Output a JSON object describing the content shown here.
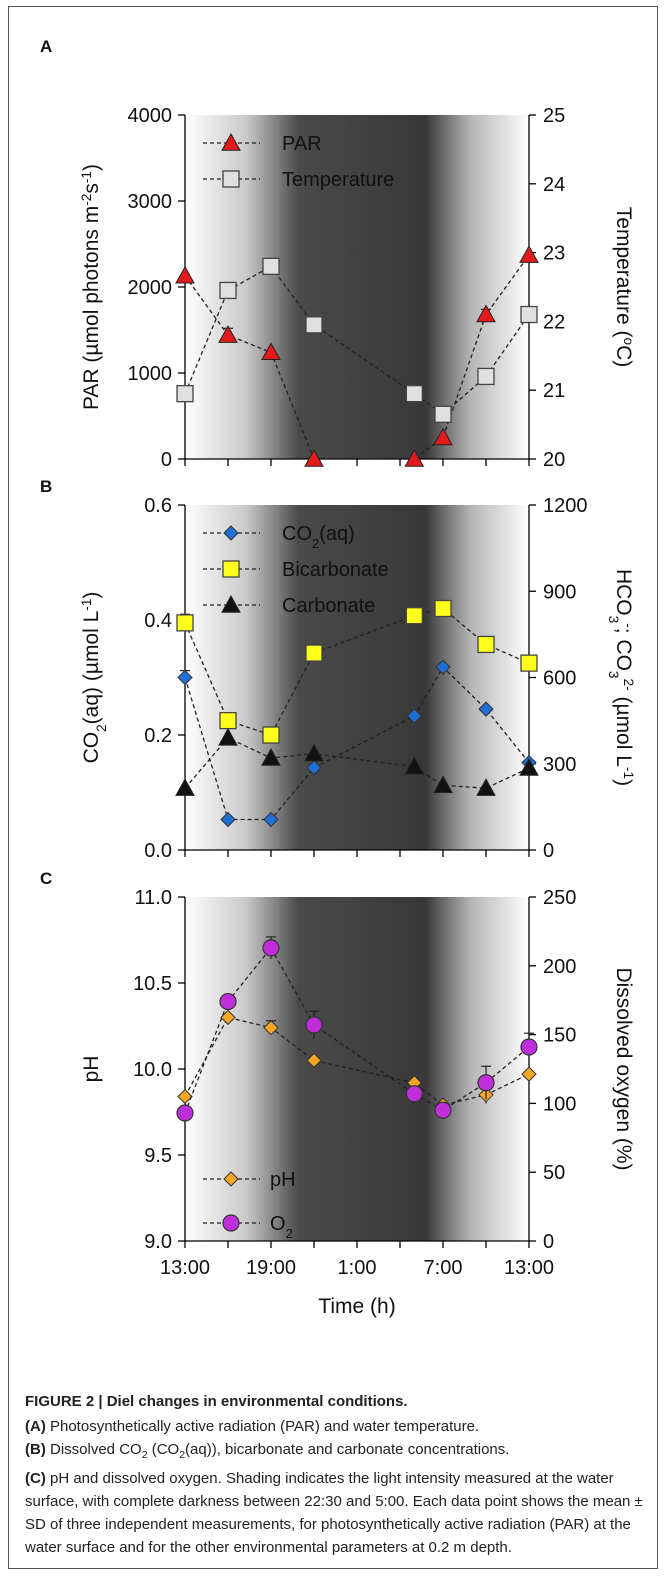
{
  "chart_data": [
    {
      "panel": "A",
      "type": "line",
      "x_ticks": [
        "13:00",
        "19:00",
        "1:00",
        "7:00",
        "13:00"
      ],
      "x_hours": [
        13,
        19,
        25,
        31,
        37
      ],
      "ylabel_left": "PAR (µmol photons m-2s-1)",
      "ylabel_right": "Temperature (°C)",
      "ylim_left": [
        0,
        4000
      ],
      "yticks_left": [
        0,
        1000,
        2000,
        3000,
        4000
      ],
      "ylim_right": [
        20,
        25
      ],
      "yticks_right": [
        20,
        21,
        22,
        23,
        24,
        25
      ],
      "series": [
        {
          "name": "PAR",
          "marker": "triangle",
          "color": "#e31a1c",
          "axis": "left",
          "x": [
            13,
            16,
            19,
            22,
            29,
            31,
            34,
            37
          ],
          "y": [
            2130,
            1440,
            1240,
            0,
            0,
            250,
            1680,
            2370
          ],
          "err": [
            0,
            80,
            0,
            0,
            0,
            0,
            60,
            0
          ]
        },
        {
          "name": "Temperature",
          "marker": "square",
          "color": "#e0e0e0",
          "axis": "right",
          "x": [
            13,
            16,
            19,
            22,
            29,
            31,
            34,
            37
          ],
          "y": [
            20.95,
            22.45,
            22.8,
            21.95,
            20.95,
            20.65,
            21.2,
            22.1
          ],
          "err": [
            0,
            0,
            0,
            0,
            0,
            0,
            0.08,
            0
          ]
        }
      ]
    },
    {
      "panel": "B",
      "type": "line",
      "x_ticks": [
        "13:00",
        "19:00",
        "1:00",
        "7:00",
        "13:00"
      ],
      "x_hours": [
        13,
        19,
        25,
        31,
        37
      ],
      "ylabel_left": "CO2(aq) (µmol L-1)",
      "ylabel_right": "HCO3-; CO32- (µmol L-1)",
      "ylim_left": [
        0,
        0.6
      ],
      "yticks_left": [
        0.0,
        0.2,
        0.4,
        0.6
      ],
      "ylim_right": [
        0,
        1200
      ],
      "yticks_right": [
        0,
        300,
        600,
        900,
        1200
      ],
      "series": [
        {
          "name": "CO2(aq)",
          "marker": "diamond",
          "color": "#1f6fd6",
          "axis": "left",
          "x": [
            13,
            16,
            19,
            22,
            29,
            31,
            34,
            37
          ],
          "y": [
            0.3,
            0.053,
            0.053,
            0.143,
            0.233,
            0.318,
            0.245,
            0.152
          ],
          "err": [
            0.012,
            0,
            0,
            0,
            0,
            0,
            0,
            0
          ]
        },
        {
          "name": "Bicarbonate",
          "marker": "square",
          "color": "#ffff1a",
          "axis": "right",
          "x": [
            13,
            16,
            19,
            22,
            29,
            31,
            34,
            37
          ],
          "y": [
            790,
            450,
            400,
            685,
            815,
            840,
            715,
            650
          ],
          "err": [
            30,
            0,
            0,
            15,
            0,
            0,
            0,
            20
          ]
        },
        {
          "name": "Carbonate",
          "marker": "triangle",
          "color": "#111111",
          "axis": "right",
          "x": [
            13,
            16,
            19,
            22,
            29,
            31,
            34,
            37
          ],
          "y": [
            215,
            390,
            320,
            335,
            290,
            225,
            215,
            285
          ],
          "err": [
            0,
            0,
            0,
            0,
            0,
            0,
            0,
            0
          ]
        }
      ]
    },
    {
      "panel": "C",
      "type": "line",
      "x_ticks": [
        "13:00",
        "19:00",
        "1:00",
        "7:00",
        "13:00"
      ],
      "x_hours": [
        13,
        19,
        25,
        31,
        37
      ],
      "xlabel": "Time (h)",
      "ylabel_left": "pH",
      "ylabel_right": "Dissolved oxygen (%)",
      "ylim_left": [
        9.0,
        11.0
      ],
      "yticks_left": [
        "9.0",
        "9.5",
        "10.0",
        "10.5",
        "11.0"
      ],
      "ylim_right": [
        0,
        250
      ],
      "yticks_right": [
        0,
        50,
        100,
        150,
        200,
        250
      ],
      "series": [
        {
          "name": "pH",
          "marker": "diamond",
          "color": "#f5a623",
          "axis": "left",
          "x": [
            13,
            16,
            19,
            22,
            29,
            31,
            34,
            37
          ],
          "y": [
            9.84,
            10.3,
            10.24,
            10.05,
            9.92,
            9.79,
            9.85,
            9.97
          ],
          "err": [
            0,
            0,
            0.04,
            0,
            0,
            0,
            0.05,
            0
          ]
        },
        {
          "name": "O2",
          "marker": "circle",
          "color": "#c02ddb",
          "axis": "right",
          "x": [
            13,
            16,
            19,
            22,
            29,
            31,
            34,
            37
          ],
          "y": [
            93,
            174,
            213,
            157,
            107,
            95,
            115,
            141
          ],
          "err": [
            0,
            0,
            8,
            10,
            0,
            0,
            12,
            10
          ]
        }
      ]
    }
  ],
  "panel_letters": [
    "A",
    "B",
    "C"
  ],
  "legend_labels": {
    "par": "PAR",
    "temperature": "Temperature",
    "co2_main": "CO",
    "co2_sub": "2",
    "co2_tail": "(aq)",
    "bicarbonate": "Bicarbonate",
    "carbonate": "Carbonate",
    "ph": "pH",
    "o2_main": "O",
    "o2_sub": "2"
  },
  "caption": {
    "title": "FIGURE 2 | Diel changes in environmental conditions.",
    "a_label": "(A)",
    "a_text": " Photosynthetically active radiation (PAR) and water temperature.",
    "b_label": "(B)",
    "b_text_1": " Dissolved CO",
    "b_sub_1": "2",
    "b_text_2": " (CO",
    "b_sub_2": "2",
    "b_text_3": "(aq)), bicarbonate and carbonate concentrations.",
    "c_label": "(C)",
    "c_text": " pH and dissolved oxygen. Shading indicates the light intensity measured at the water surface, with complete darkness between 22:30 and 5:00. Each data point shows the mean ± SD of three independent measurements, for photosynthetically active radiation (PAR) at the water surface and for the other environmental parameters at 0.2 m depth."
  },
  "colors": {
    "shade_light": "#ffffff",
    "shade_dark": "#383838",
    "axis": "#000000"
  }
}
